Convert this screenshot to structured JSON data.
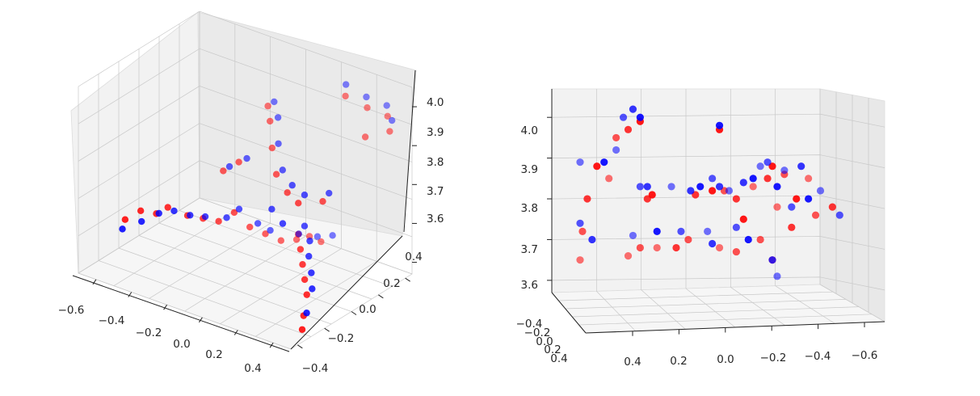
{
  "chart_data": [
    {
      "type": "scatter",
      "projection": "3d",
      "grid": true,
      "colors": {
        "series_a": "#ff0000",
        "series_b": "#0000ff",
        "overlap": "#5a2a8a"
      },
      "x_ticks": [
        "−0.6",
        "−0.4",
        "−0.2",
        "0.0",
        "0.2",
        "0.4"
      ],
      "y_ticks": [
        "−0.4",
        "−0.2",
        "0.0",
        "0.2",
        "0.4"
      ],
      "z_ticks": [
        "3.6",
        "3.7",
        "3.8",
        "3.9",
        "4.0"
      ],
      "xlim": [
        -0.7,
        0.5
      ],
      "ylim": [
        -0.45,
        0.45
      ],
      "zlim": [
        3.57,
        4.05
      ],
      "series": [
        {
          "color": "red",
          "points": [
            [
              -0.55,
              -0.3,
              3.7
            ],
            [
              -0.5,
              -0.25,
              3.72
            ],
            [
              -0.45,
              -0.2,
              3.71
            ],
            [
              -0.4,
              -0.18,
              3.73
            ],
            [
              -0.35,
              -0.1,
              3.7
            ],
            [
              -0.3,
              -0.05,
              3.69
            ],
            [
              -0.25,
              0.0,
              3.68
            ],
            [
              -0.2,
              0.05,
              3.7
            ],
            [
              -0.15,
              0.1,
              3.66
            ],
            [
              -0.1,
              0.15,
              3.64
            ],
            [
              -0.05,
              0.2,
              3.62
            ],
            [
              0.0,
              0.25,
              3.62
            ],
            [
              0.05,
              0.28,
              3.63
            ],
            [
              0.1,
              0.3,
              3.62
            ],
            [
              0.2,
              0.0,
              3.72
            ],
            [
              0.25,
              -0.05,
              3.7
            ],
            [
              0.3,
              -0.1,
              3.68
            ],
            [
              0.35,
              -0.15,
              3.66
            ],
            [
              0.4,
              -0.2,
              3.64
            ],
            [
              0.42,
              -0.25,
              3.6
            ],
            [
              0.45,
              -0.3,
              3.58
            ],
            [
              -0.2,
              0.3,
              3.92
            ],
            [
              -0.15,
              0.25,
              3.9
            ],
            [
              -0.1,
              0.2,
              3.85
            ],
            [
              0.0,
              0.1,
              3.82
            ],
            [
              0.1,
              0.05,
              3.8
            ],
            [
              0.2,
              0.0,
              3.8
            ],
            [
              0.3,
              0.05,
              3.81
            ],
            [
              0.2,
              0.35,
              4.0
            ],
            [
              0.3,
              0.38,
              3.98
            ],
            [
              0.4,
              0.4,
              3.97
            ],
            [
              0.45,
              0.35,
              3.95
            ],
            [
              0.35,
              0.3,
              3.93
            ],
            [
              -0.3,
              0.1,
              3.78
            ],
            [
              -0.25,
              0.15,
              3.8
            ]
          ]
        },
        {
          "color": "blue",
          "points": [
            [
              -0.55,
              -0.32,
              3.68
            ],
            [
              -0.48,
              -0.27,
              3.7
            ],
            [
              -0.42,
              -0.22,
              3.72
            ],
            [
              -0.38,
              -0.16,
              3.72
            ],
            [
              -0.32,
              -0.12,
              3.71
            ],
            [
              -0.28,
              -0.06,
              3.7
            ],
            [
              -0.22,
              0.02,
              3.69
            ],
            [
              -0.18,
              0.06,
              3.71
            ],
            [
              -0.12,
              0.12,
              3.67
            ],
            [
              -0.08,
              0.16,
              3.65
            ],
            [
              0.02,
              0.24,
              3.64
            ],
            [
              0.08,
              0.3,
              3.63
            ],
            [
              0.15,
              0.32,
              3.64
            ],
            [
              0.22,
              0.02,
              3.74
            ],
            [
              0.28,
              -0.02,
              3.72
            ],
            [
              0.32,
              -0.08,
              3.7
            ],
            [
              0.38,
              -0.14,
              3.68
            ],
            [
              0.43,
              -0.2,
              3.66
            ],
            [
              0.46,
              -0.28,
              3.62
            ],
            [
              -0.18,
              0.32,
              3.93
            ],
            [
              -0.12,
              0.27,
              3.91
            ],
            [
              -0.08,
              0.22,
              3.86
            ],
            [
              0.02,
              0.12,
              3.83
            ],
            [
              0.12,
              0.06,
              3.82
            ],
            [
              0.22,
              0.02,
              3.82
            ],
            [
              0.32,
              0.07,
              3.83
            ],
            [
              0.18,
              0.38,
              4.02
            ],
            [
              0.28,
              0.4,
              4.0
            ],
            [
              0.38,
              0.42,
              3.99
            ],
            [
              0.44,
              0.38,
              3.97
            ],
            [
              -0.28,
              0.12,
              3.79
            ],
            [
              -0.22,
              0.17,
              3.81
            ],
            [
              0.05,
              0.0,
              3.76
            ],
            [
              0.15,
              -0.05,
              3.75
            ]
          ]
        }
      ]
    },
    {
      "type": "scatter",
      "projection": "3d",
      "grid": true,
      "colors": {
        "series_a": "#ff0000",
        "series_b": "#0000ff",
        "overlap": "#5a2a8a"
      },
      "x_ticks": [
        "0.4",
        "0.2",
        "0.0",
        "−0.2",
        "−0.4",
        "−0.6"
      ],
      "y_ticks": [
        "−0.4",
        "−0.2",
        "0.0",
        "0.2",
        "0.4"
      ],
      "z_ticks": [
        "3.6",
        "3.7",
        "3.8",
        "3.9",
        "4.0"
      ],
      "xlim": [
        0.5,
        -0.7
      ],
      "zlim": [
        3.57,
        4.05
      ],
      "series": [
        {
          "color": "red",
          "points": [
            [
              0.5,
              3.65
            ],
            [
              0.49,
              3.72
            ],
            [
              0.47,
              3.8
            ],
            [
              0.43,
              3.88
            ],
            [
              0.38,
              3.85
            ],
            [
              0.35,
              3.95
            ],
            [
              0.3,
              3.97
            ],
            [
              0.25,
              3.99
            ],
            [
              0.3,
              3.66
            ],
            [
              0.25,
              3.68
            ],
            [
              0.22,
              3.8
            ],
            [
              0.2,
              3.81
            ],
            [
              0.18,
              3.68
            ],
            [
              0.05,
              3.7
            ],
            [
              0.02,
              3.81
            ],
            [
              -0.05,
              3.82
            ],
            [
              -0.08,
              3.68
            ],
            [
              -0.1,
              3.82
            ],
            [
              -0.15,
              3.8
            ],
            [
              -0.18,
              3.75
            ],
            [
              -0.22,
              3.83
            ],
            [
              -0.25,
              3.7
            ],
            [
              -0.28,
              3.85
            ],
            [
              -0.3,
              3.88
            ],
            [
              -0.32,
              3.78
            ],
            [
              -0.35,
              3.86
            ],
            [
              -0.38,
              3.73
            ],
            [
              -0.4,
              3.8
            ],
            [
              -0.45,
              3.85
            ],
            [
              -0.48,
              3.76
            ],
            [
              -0.55,
              3.78
            ],
            [
              -0.08,
              3.97
            ],
            [
              -0.3,
              3.65
            ],
            [
              -0.15,
              3.67
            ],
            [
              0.1,
              3.68
            ]
          ]
        },
        {
          "color": "blue",
          "points": [
            [
              0.5,
              3.89
            ],
            [
              0.5,
              3.74
            ],
            [
              0.45,
              3.7
            ],
            [
              0.4,
              3.89
            ],
            [
              0.35,
              3.92
            ],
            [
              0.32,
              4.0
            ],
            [
              0.28,
              4.02
            ],
            [
              0.25,
              4.0
            ],
            [
              0.28,
              3.71
            ],
            [
              0.25,
              3.83
            ],
            [
              0.22,
              3.83
            ],
            [
              0.18,
              3.72
            ],
            [
              0.12,
              3.83
            ],
            [
              0.08,
              3.72
            ],
            [
              0.04,
              3.82
            ],
            [
              0.0,
              3.83
            ],
            [
              -0.03,
              3.72
            ],
            [
              -0.05,
              3.85
            ],
            [
              -0.08,
              3.83
            ],
            [
              -0.08,
              3.98
            ],
            [
              -0.12,
              3.82
            ],
            [
              -0.15,
              3.73
            ],
            [
              -0.18,
              3.84
            ],
            [
              -0.22,
              3.85
            ],
            [
              -0.25,
              3.88
            ],
            [
              -0.28,
              3.89
            ],
            [
              -0.3,
              3.65
            ],
            [
              -0.32,
              3.83
            ],
            [
              -0.35,
              3.87
            ],
            [
              -0.38,
              3.78
            ],
            [
              -0.42,
              3.88
            ],
            [
              -0.45,
              3.8
            ],
            [
              -0.5,
              3.82
            ],
            [
              -0.58,
              3.76
            ],
            [
              -0.05,
              3.69
            ],
            [
              -0.2,
              3.7
            ],
            [
              -0.32,
              3.61
            ]
          ]
        }
      ]
    }
  ]
}
